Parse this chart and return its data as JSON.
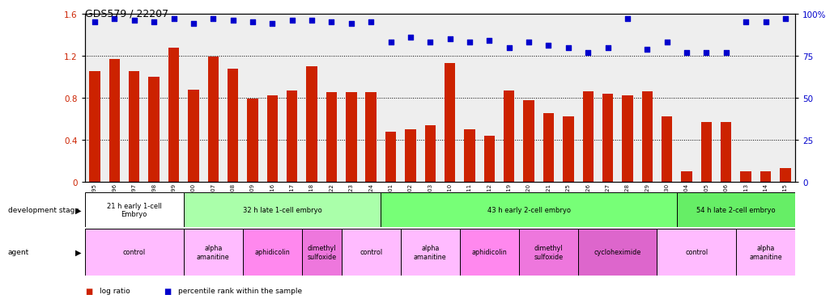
{
  "title": "GDS579 / 22207",
  "samples": [
    "GSM14695",
    "GSM14696",
    "GSM14697",
    "GSM14698",
    "GSM14699",
    "GSM14700",
    "GSM14707",
    "GSM14708",
    "GSM14709",
    "GSM14716",
    "GSM14717",
    "GSM14718",
    "GSM14722",
    "GSM14723",
    "GSM14724",
    "GSM14701",
    "GSM14702",
    "GSM14703",
    "GSM14710",
    "GSM14711",
    "GSM14712",
    "GSM14719",
    "GSM14720",
    "GSM14721",
    "GSM14725",
    "GSM14726",
    "GSM14727",
    "GSM14728",
    "GSM14729",
    "GSM14730",
    "GSM14704",
    "GSM14705",
    "GSM14706",
    "GSM14713",
    "GSM14714",
    "GSM14715"
  ],
  "log_ratio": [
    1.05,
    1.17,
    1.05,
    1.0,
    1.28,
    0.88,
    1.19,
    1.08,
    0.79,
    0.82,
    0.87,
    1.1,
    0.85,
    0.85,
    0.85,
    0.48,
    0.5,
    0.54,
    1.13,
    0.5,
    0.44,
    0.87,
    0.78,
    0.65,
    0.62,
    0.86,
    0.84,
    0.82,
    0.86,
    0.62,
    0.1,
    0.57,
    0.57,
    0.1,
    0.1,
    0.13
  ],
  "percentile": [
    95,
    97,
    96,
    95,
    97,
    94,
    97,
    96,
    95,
    94,
    96,
    96,
    95,
    94,
    95,
    83,
    86,
    83,
    85,
    83,
    84,
    80,
    83,
    81,
    80,
    77,
    80,
    97,
    79,
    83,
    77,
    77,
    77,
    95,
    95,
    97
  ],
  "bar_color": "#cc2200",
  "dot_color": "#0000cc",
  "ylim_left": [
    0,
    1.6
  ],
  "ylim_right": [
    0,
    100
  ],
  "yticks_left": [
    0,
    0.4,
    0.8,
    1.2,
    1.6
  ],
  "ytick_labels_left": [
    "0",
    "0.4",
    "0.8",
    "1.2",
    "1.6"
  ],
  "yticks_right": [
    0,
    25,
    50,
    75,
    100
  ],
  "ytick_labels_right": [
    "0",
    "25",
    "50",
    "75",
    "100%"
  ],
  "dev_stage_groups": [
    {
      "label": "21 h early 1-cell\nEmbryo",
      "start": 0,
      "end": 5,
      "color": "#ffffff"
    },
    {
      "label": "32 h late 1-cell embryo",
      "start": 5,
      "end": 15,
      "color": "#aaffaa"
    },
    {
      "label": "43 h early 2-cell embryo",
      "start": 15,
      "end": 30,
      "color": "#77ff77"
    },
    {
      "label": "54 h late 2-cell embryo",
      "start": 30,
      "end": 36,
      "color": "#66ee66"
    }
  ],
  "agent_groups": [
    {
      "label": "control",
      "start": 0,
      "end": 5,
      "color": "#ffbbff"
    },
    {
      "label": "alpha\namanitine",
      "start": 5,
      "end": 8,
      "color": "#ffbbff"
    },
    {
      "label": "aphidicolin",
      "start": 8,
      "end": 11,
      "color": "#ff88ee"
    },
    {
      "label": "dimethyl\nsulfoxide",
      "start": 11,
      "end": 13,
      "color": "#ee77dd"
    },
    {
      "label": "control",
      "start": 13,
      "end": 16,
      "color": "#ffbbff"
    },
    {
      "label": "alpha\namanitine",
      "start": 16,
      "end": 19,
      "color": "#ffbbff"
    },
    {
      "label": "aphidicolin",
      "start": 19,
      "end": 22,
      "color": "#ff88ee"
    },
    {
      "label": "dimethyl\nsulfoxide",
      "start": 22,
      "end": 25,
      "color": "#ee77dd"
    },
    {
      "label": "cycloheximide",
      "start": 25,
      "end": 29,
      "color": "#dd66cc"
    },
    {
      "label": "control",
      "start": 29,
      "end": 33,
      "color": "#ffbbff"
    },
    {
      "label": "alpha\namanitine",
      "start": 33,
      "end": 36,
      "color": "#ffbbff"
    }
  ]
}
